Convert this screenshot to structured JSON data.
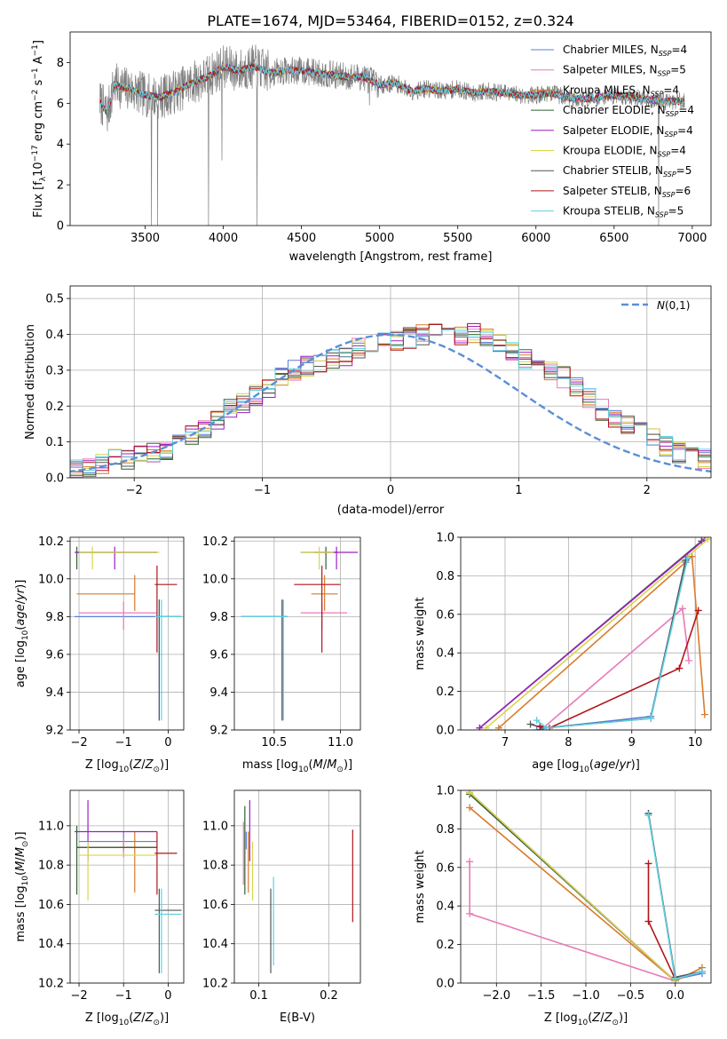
{
  "figure": {
    "title": "PLATE=1674, MJD=53464, FIBERID=0152, z=0.324"
  },
  "models": [
    {
      "name": "Chabrier MILES",
      "nssp": "4",
      "color": "#5b7fd6"
    },
    {
      "name": "Salpeter MILES",
      "nssp": "5",
      "color": "#e879b8"
    },
    {
      "name": "Kroupa MILES",
      "nssp": "4",
      "color": "#d97a2b"
    },
    {
      "name": "Chabrier ELODIE",
      "nssp": "4",
      "color": "#2f5f2f"
    },
    {
      "name": "Salpeter ELODIE",
      "nssp": "4",
      "color": "#9b1fc4"
    },
    {
      "name": "Kroupa ELODIE",
      "nssp": "4",
      "color": "#d6d64a"
    },
    {
      "name": "Chabrier STELIB",
      "nssp": "5",
      "color": "#555555"
    },
    {
      "name": "Salpeter STELIB",
      "nssp": "6",
      "color": "#b0151b"
    },
    {
      "name": "Kroupa STELIB",
      "nssp": "5",
      "color": "#5ed0e0"
    }
  ],
  "chart_data": [
    {
      "id": "spectrum",
      "type": "line",
      "xlabel": "wavelength [Angstrom, rest frame]",
      "ylabel_parts": [
        "Flux [f",
        "λ",
        "10",
        "−17",
        " erg cm",
        "−2",
        " s",
        "−1",
        " A",
        "−1",
        "]"
      ],
      "xlim": [
        3020,
        7120
      ],
      "ylim": [
        0,
        9.5
      ],
      "xticks": [
        3500,
        4000,
        4500,
        5000,
        5500,
        6000,
        6500,
        7000
      ],
      "yticks": [
        0,
        2,
        4,
        6,
        8
      ],
      "continuum": {
        "x": [
          3210,
          3260,
          3300,
          3400,
          3500,
          3600,
          3700,
          3800,
          3900,
          4000,
          4100,
          4200,
          4300,
          4400,
          4500,
          4600,
          4700,
          4800,
          4900,
          5000,
          5100,
          5200,
          5300,
          5400,
          5500,
          5600,
          5700,
          5800,
          5900,
          6000,
          6100,
          6200,
          6300,
          6400,
          6500,
          6600,
          6700,
          6800,
          6900,
          6950
        ],
        "y": [
          6.1,
          5.5,
          6.9,
          6.7,
          6.4,
          6.3,
          6.6,
          7.0,
          7.3,
          7.8,
          7.6,
          7.8,
          7.5,
          7.6,
          7.6,
          7.5,
          7.4,
          7.3,
          7.3,
          6.9,
          7.0,
          6.6,
          6.7,
          6.6,
          6.7,
          6.5,
          6.6,
          6.5,
          6.4,
          6.4,
          6.5,
          6.3,
          6.2,
          6.3,
          6.4,
          6.3,
          6.2,
          6.1,
          6.1,
          6.1
        ]
      },
      "dips": [
        {
          "x": 3540,
          "y": 0.0
        },
        {
          "x": 3580,
          "y": 0.0
        },
        {
          "x": 3905,
          "y": 0.0
        },
        {
          "x": 3990,
          "y": 3.2
        },
        {
          "x": 4215,
          "y": 0.0
        },
        {
          "x": 4935,
          "y": 5.9
        },
        {
          "x": 6785,
          "y": 0.0
        }
      ]
    },
    {
      "id": "residuals",
      "type": "histogram",
      "xlabel": "(data-model)/error",
      "ylabel": "Normed distribution",
      "xlim": [
        -2.5,
        2.5
      ],
      "ylim": [
        0,
        0.535
      ],
      "xticks": [
        -2,
        -1,
        0,
        1,
        2
      ],
      "yticks": [
        0.0,
        0.1,
        0.2,
        0.3,
        0.4,
        0.5
      ],
      "bin_width": 0.1,
      "bin_start": -2.6,
      "base": [
        0.02,
        0.03,
        0.03,
        0.04,
        0.05,
        0.05,
        0.06,
        0.07,
        0.08,
        0.1,
        0.12,
        0.14,
        0.16,
        0.19,
        0.21,
        0.23,
        0.25,
        0.28,
        0.3,
        0.31,
        0.32,
        0.33,
        0.34,
        0.36,
        0.37,
        0.38,
        0.38,
        0.39,
        0.4,
        0.41,
        0.41,
        0.4,
        0.4,
        0.39,
        0.37,
        0.35,
        0.33,
        0.31,
        0.3,
        0.28,
        0.25,
        0.22,
        0.19,
        0.17,
        0.15,
        0.13,
        0.11,
        0.09,
        0.07,
        0.06,
        0.05,
        0.04,
        0.03
      ],
      "gaussian_label": "N(0,1)"
    },
    {
      "id": "age-vs-Z",
      "type": "errorbar",
      "xlabel": "Z [log10(Z/Z⊙)]",
      "ylabel": "age  [log10(age/yr)]",
      "xlim": [
        -2.2,
        0.35
      ],
      "ylim": [
        9.2,
        10.22
      ],
      "xticks": [
        -2,
        -1,
        0
      ],
      "yticks": [
        9.2,
        9.4,
        9.6,
        9.8,
        10.0,
        10.2
      ],
      "points": [
        {
          "model": 0,
          "x": -0.2,
          "y": 9.8,
          "x_lo": -2.1,
          "x_hi": 0.3,
          "y_lo": 9.25,
          "y_hi": 9.89
        },
        {
          "model": 1,
          "x": -1.0,
          "y": 9.82,
          "x_lo": -2.0,
          "x_hi": -0.25,
          "y_lo": 9.73,
          "y_hi": 9.88
        },
        {
          "model": 2,
          "x": -0.75,
          "y": 9.92,
          "x_lo": -2.05,
          "x_hi": -0.75,
          "y_lo": 9.83,
          "y_hi": 10.02
        },
        {
          "model": 3,
          "x": -2.05,
          "y": 10.14,
          "x_lo": -2.05,
          "x_hi": -0.25,
          "y_lo": 10.05,
          "y_hi": 10.17
        },
        {
          "model": 4,
          "x": -1.2,
          "y": 10.14,
          "x_lo": -2.1,
          "x_hi": -0.25,
          "y_lo": 10.05,
          "y_hi": 10.17
        },
        {
          "model": 5,
          "x": -1.7,
          "y": 10.14,
          "x_lo": -2.0,
          "x_hi": -0.2,
          "y_lo": 10.05,
          "y_hi": 10.17
        },
        {
          "model": 6,
          "x": -0.2,
          "y": 9.8,
          "x_lo": -0.3,
          "x_hi": 0.3,
          "y_lo": 9.25,
          "y_hi": 9.89
        },
        {
          "model": 7,
          "x": -0.25,
          "y": 9.97,
          "x_lo": -0.3,
          "x_hi": 0.2,
          "y_lo": 9.61,
          "y_hi": 10.07
        },
        {
          "model": 8,
          "x": -0.15,
          "y": 9.8,
          "x_lo": -0.3,
          "x_hi": 0.3,
          "y_lo": 9.25,
          "y_hi": 9.89
        }
      ]
    },
    {
      "id": "age-vs-mass",
      "type": "errorbar",
      "xlabel": "mass [log10(M/M⊙)]",
      "ylabel": "",
      "xlim": [
        10.2,
        11.15
      ],
      "ylim": [
        9.2,
        10.22
      ],
      "xticks": [
        10.5,
        11.0
      ],
      "yticks": [
        9.2,
        9.4,
        9.6,
        9.8,
        10.0,
        10.2
      ],
      "points": [
        {
          "model": 0,
          "x": 10.56,
          "y": 9.8,
          "x_lo": 10.25,
          "x_hi": 10.6,
          "y_lo": 9.25,
          "y_hi": 9.89
        },
        {
          "model": 1,
          "x": 10.86,
          "y": 9.82,
          "x_lo": 10.7,
          "x_hi": 11.05,
          "y_lo": 9.73,
          "y_hi": 9.88
        },
        {
          "model": 2,
          "x": 10.88,
          "y": 9.92,
          "x_lo": 10.78,
          "x_hi": 10.98,
          "y_lo": 9.83,
          "y_hi": 10.02
        },
        {
          "model": 3,
          "x": 10.89,
          "y": 10.14,
          "x_lo": 10.7,
          "x_hi": 10.98,
          "y_lo": 10.05,
          "y_hi": 10.17
        },
        {
          "model": 4,
          "x": 10.97,
          "y": 10.14,
          "x_lo": 10.8,
          "x_hi": 11.13,
          "y_lo": 10.05,
          "y_hi": 10.17
        },
        {
          "model": 5,
          "x": 10.84,
          "y": 10.14,
          "x_lo": 10.7,
          "x_hi": 10.95,
          "y_lo": 10.05,
          "y_hi": 10.17
        },
        {
          "model": 6,
          "x": 10.56,
          "y": 9.8,
          "x_lo": 10.25,
          "x_hi": 10.6,
          "y_lo": 9.25,
          "y_hi": 9.89
        },
        {
          "model": 7,
          "x": 10.86,
          "y": 9.97,
          "x_lo": 10.65,
          "x_hi": 11.0,
          "y_lo": 9.61,
          "y_hi": 10.07
        },
        {
          "model": 8,
          "x": 10.57,
          "y": 9.8,
          "x_lo": 10.25,
          "x_hi": 10.6,
          "y_lo": 9.25,
          "y_hi": 9.89
        }
      ]
    },
    {
      "id": "mass-weight-vs-age",
      "type": "line",
      "xlabel": "age  [log10(age/yr)]",
      "ylabel": "mass weight",
      "xlim": [
        6.3,
        10.25
      ],
      "ylim": [
        0,
        1.0
      ],
      "xticks": [
        7,
        8,
        9,
        10
      ],
      "yticks": [
        0.0,
        0.2,
        0.4,
        0.6,
        0.8,
        1.0
      ],
      "series": [
        {
          "model": 0,
          "x": [
            7.5,
            7.65,
            9.3,
            9.85,
            9.88
          ],
          "y": [
            0.0,
            0.01,
            0.07,
            0.87,
            0.9
          ]
        },
        {
          "model": 1,
          "x": [
            7.6,
            9.8,
            9.9
          ],
          "y": [
            0.01,
            0.63,
            0.36
          ]
        },
        {
          "model": 2,
          "x": [
            6.9,
            9.95,
            10.15
          ],
          "y": [
            0.01,
            0.9,
            0.08
          ]
        },
        {
          "model": 3,
          "x": [
            6.6,
            10.1
          ],
          "y": [
            0.01,
            0.98
          ]
        },
        {
          "model": 4,
          "x": [
            6.6,
            10.15
          ],
          "y": [
            0.01,
            0.99
          ]
        },
        {
          "model": 5,
          "x": [
            6.7,
            10.2
          ],
          "y": [
            0.01,
            0.99
          ]
        },
        {
          "model": 6,
          "x": [
            7.4,
            7.6,
            9.3,
            9.85
          ],
          "y": [
            0.03,
            0.01,
            0.06,
            0.88
          ]
        },
        {
          "model": 7,
          "x": [
            7.55,
            7.7,
            9.75,
            10.05
          ],
          "y": [
            0.02,
            0.01,
            0.32,
            0.62
          ]
        },
        {
          "model": 8,
          "x": [
            7.5,
            7.65,
            9.3,
            9.88
          ],
          "y": [
            0.05,
            0.01,
            0.06,
            0.89
          ]
        }
      ]
    },
    {
      "id": "mass-vs-Z",
      "type": "errorbar",
      "xlabel": "Z [log10(Z/Z⊙)]",
      "ylabel": "mass [log10(M/M⊙)]",
      "xlim": [
        -2.2,
        0.35
      ],
      "ylim": [
        10.2,
        11.18
      ],
      "xticks": [
        -2,
        -1,
        0
      ],
      "yticks": [
        10.2,
        10.4,
        10.6,
        10.8,
        11.0
      ],
      "points": [
        {
          "model": 0,
          "x": -1.0,
          "y": 10.92,
          "x_lo": -2.0,
          "x_hi": -0.25,
          "y_lo": 10.87,
          "y_hi": 10.97
        },
        {
          "model": 1,
          "x": -1.0,
          "y": 10.89,
          "x_lo": -2.0,
          "x_hi": -0.25,
          "y_lo": 10.84,
          "y_hi": 10.94
        },
        {
          "model": 2,
          "x": -0.75,
          "y": 10.89,
          "x_lo": -2.05,
          "x_hi": -0.25,
          "y_lo": 10.66,
          "y_hi": 10.97
        },
        {
          "model": 3,
          "x": -2.05,
          "y": 10.89,
          "x_lo": -2.05,
          "x_hi": -0.25,
          "y_lo": 10.65,
          "y_hi": 11.0
        },
        {
          "model": 4,
          "x": -1.8,
          "y": 10.97,
          "x_lo": -2.1,
          "x_hi": -0.25,
          "y_lo": 10.82,
          "y_hi": 11.13
        },
        {
          "model": 5,
          "x": -1.8,
          "y": 10.85,
          "x_lo": -2.0,
          "x_hi": -0.25,
          "y_lo": 10.62,
          "y_hi": 10.92
        },
        {
          "model": 6,
          "x": -0.2,
          "y": 10.57,
          "x_lo": -0.3,
          "x_hi": 0.3,
          "y_lo": 10.25,
          "y_hi": 10.68
        },
        {
          "model": 7,
          "x": -0.25,
          "y": 10.86,
          "x_lo": -0.3,
          "x_hi": 0.2,
          "y_lo": 10.65,
          "y_hi": 10.97
        },
        {
          "model": 8,
          "x": -0.15,
          "y": 10.55,
          "x_lo": -0.3,
          "x_hi": 0.3,
          "y_lo": 10.25,
          "y_hi": 10.68
        }
      ]
    },
    {
      "id": "mass-vs-EBV",
      "type": "errorbar",
      "xlabel": "E(B-V)",
      "ylabel": "",
      "xlim": [
        0.065,
        0.245
      ],
      "ylim": [
        10.2,
        11.18
      ],
      "xticks": [
        0.1,
        0.2
      ],
      "yticks": [
        10.2,
        10.4,
        10.6,
        10.8,
        11.0
      ],
      "points": [
        {
          "model": 0,
          "x": 0.082,
          "y": 10.92,
          "y_lo": 10.88,
          "y_hi": 10.97
        },
        {
          "model": 1,
          "x": 0.078,
          "y": 10.89,
          "y_lo": 10.7,
          "y_hi": 11.02
        },
        {
          "model": 2,
          "x": 0.085,
          "y": 10.89,
          "y_lo": 10.66,
          "y_hi": 10.97
        },
        {
          "model": 3,
          "x": 0.08,
          "y": 10.89,
          "y_lo": 10.65,
          "y_hi": 11.1
        },
        {
          "model": 4,
          "x": 0.087,
          "y": 10.97,
          "y_lo": 10.82,
          "y_hi": 11.13
        },
        {
          "model": 5,
          "x": 0.091,
          "y": 10.85,
          "y_lo": 10.62,
          "y_hi": 10.92
        },
        {
          "model": 6,
          "x": 0.117,
          "y": 10.5,
          "y_lo": 10.25,
          "y_hi": 10.68
        },
        {
          "model": 7,
          "x": 0.234,
          "y": 10.75,
          "y_lo": 10.51,
          "y_hi": 10.98
        },
        {
          "model": 8,
          "x": 0.121,
          "y": 10.52,
          "y_lo": 10.29,
          "y_hi": 10.74
        }
      ]
    },
    {
      "id": "mass-weight-vs-Z",
      "type": "line",
      "xlabel": "Z [log10(Z/Z⊙)]",
      "ylabel": "mass weight",
      "xlim": [
        -2.4,
        0.4
      ],
      "ylim": [
        0,
        1.0
      ],
      "xticks": [
        -2.0,
        -1.5,
        -1.0,
        -0.5,
        0.0
      ],
      "yticks": [
        0.0,
        0.2,
        0.4,
        0.6,
        0.8,
        1.0
      ],
      "series": [
        {
          "model": 0,
          "x": [
            -0.3,
            0.0,
            0.3
          ],
          "y": [
            0.88,
            0.02,
            0.05
          ]
        },
        {
          "model": 1,
          "x": [
            -2.3,
            -2.3,
            0.0
          ],
          "y": [
            0.63,
            0.36,
            0.01
          ]
        },
        {
          "model": 2,
          "x": [
            -2.3,
            0.0,
            0.3
          ],
          "y": [
            0.91,
            0.01,
            0.08
          ]
        },
        {
          "model": 3,
          "x": [
            -2.3,
            0.0
          ],
          "y": [
            0.98,
            0.01
          ]
        },
        {
          "model": 4,
          "x": [
            -2.3,
            0.0
          ],
          "y": [
            0.99,
            0.01
          ]
        },
        {
          "model": 5,
          "x": [
            -2.3,
            0.0
          ],
          "y": [
            0.99,
            0.01
          ]
        },
        {
          "model": 6,
          "x": [
            -0.3,
            0.0,
            0.3
          ],
          "y": [
            0.88,
            0.03,
            0.06
          ]
        },
        {
          "model": 7,
          "x": [
            -0.3,
            -0.3,
            0.0
          ],
          "y": [
            0.62,
            0.32,
            0.02
          ]
        },
        {
          "model": 8,
          "x": [
            -0.3,
            0.0,
            0.3
          ],
          "y": [
            0.87,
            0.02,
            0.06
          ]
        }
      ]
    }
  ]
}
